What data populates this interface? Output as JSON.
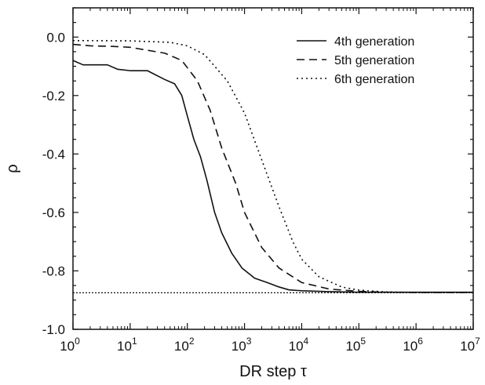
{
  "chart_data": {
    "type": "line",
    "xscale": "log",
    "xlabel": "DR step τ",
    "ylabel": "ρ",
    "xlim": [
      1,
      10000000
    ],
    "ylim": [
      -1.0,
      0.1
    ],
    "yticks": [
      -1.0,
      -0.8,
      -0.6,
      -0.4,
      -0.2,
      0.0
    ],
    "ytick_labels": [
      "-1.0",
      "-0.8",
      "-0.6",
      "-0.4",
      "-0.2",
      "0.0"
    ],
    "xtick_exponents": [
      0,
      1,
      2,
      3,
      4,
      5,
      6,
      7
    ],
    "xtick_base": "10",
    "grid": false,
    "legend_position": "top-right",
    "reference_line": {
      "y": -0.875,
      "style": "dotted"
    },
    "series": [
      {
        "name": "4th generation",
        "style": "solid",
        "x": [
          1,
          1.5,
          2,
          4,
          6,
          10,
          20,
          40,
          60,
          80,
          100,
          130,
          170,
          220,
          300,
          400,
          600,
          900,
          1500,
          2500,
          4000,
          6000,
          10000,
          30000,
          100000,
          10000000
        ],
        "y": [
          -0.08,
          -0.095,
          -0.095,
          -0.095,
          -0.11,
          -0.115,
          -0.115,
          -0.145,
          -0.16,
          -0.2,
          -0.27,
          -0.35,
          -0.41,
          -0.49,
          -0.6,
          -0.67,
          -0.74,
          -0.79,
          -0.825,
          -0.84,
          -0.855,
          -0.865,
          -0.868,
          -0.871,
          -0.873,
          -0.873
        ]
      },
      {
        "name": "5th generation",
        "style": "dashed",
        "x": [
          1,
          2,
          5,
          10,
          20,
          40,
          80,
          150,
          250,
          400,
          700,
          1000,
          2000,
          4000,
          10000,
          30000,
          100000,
          300000,
          1000000,
          10000000
        ],
        "y": [
          -0.025,
          -0.03,
          -0.032,
          -0.035,
          -0.045,
          -0.055,
          -0.08,
          -0.15,
          -0.25,
          -0.38,
          -0.5,
          -0.6,
          -0.72,
          -0.79,
          -0.84,
          -0.862,
          -0.87,
          -0.873,
          -0.874,
          -0.874
        ]
      },
      {
        "name": "6th generation",
        "style": "dotted",
        "x": [
          1,
          10,
          50,
          100,
          200,
          500,
          1000,
          2000,
          4000,
          7000,
          10000,
          20000,
          50000,
          100000,
          300000,
          1000000,
          10000000
        ],
        "y": [
          -0.012,
          -0.013,
          -0.018,
          -0.03,
          -0.06,
          -0.15,
          -0.26,
          -0.42,
          -0.58,
          -0.7,
          -0.76,
          -0.82,
          -0.855,
          -0.866,
          -0.872,
          -0.874,
          -0.874
        ]
      }
    ]
  }
}
